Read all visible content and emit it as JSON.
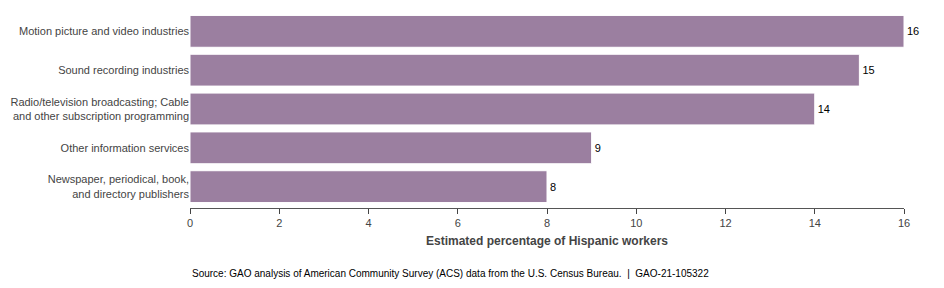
{
  "chart_data": {
    "type": "bar",
    "orientation": "horizontal",
    "categories": [
      "Newspaper, periodical, book,\nand directory publishers",
      "Other information services",
      "Radio/television broadcasting; Cable\nand other subscription programming",
      "Sound recording industries",
      "Motion picture and video industries"
    ],
    "values": [
      8,
      9,
      14,
      15,
      16
    ],
    "color": "#9b7fa0",
    "xlim": [
      0,
      16
    ],
    "xticks": [
      0,
      2,
      4,
      6,
      8,
      10,
      12,
      14,
      16
    ],
    "xlabel": "Estimated percentage of Hispanic workers",
    "annotations": [
      "Source: GAO analysis of American Community Survey (ACS) data from the U.S. Census Bureau.  |  GAO-21-105322"
    ],
    "data_labels": true,
    "grid": false
  }
}
